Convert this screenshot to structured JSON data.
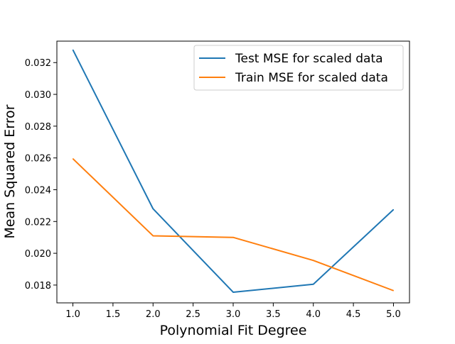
{
  "chart_data": {
    "type": "line",
    "title": "",
    "xlabel": "Polynomial Fit Degree",
    "ylabel": "Mean Squared Error",
    "x": [
      1.0,
      2.0,
      3.0,
      4.0,
      5.0
    ],
    "xlim": [
      0.8,
      5.2
    ],
    "ylim": [
      0.01688,
      0.03335
    ],
    "xticks": [
      1.0,
      1.5,
      2.0,
      2.5,
      3.0,
      3.5,
      4.0,
      4.5,
      5.0
    ],
    "xtick_labels": [
      "1.0",
      "1.5",
      "2.0",
      "2.5",
      "3.0",
      "3.5",
      "4.0",
      "4.5",
      "5.0"
    ],
    "yticks": [
      0.018,
      0.02,
      0.022,
      0.024,
      0.026,
      0.028,
      0.03,
      0.032
    ],
    "ytick_labels": [
      "0.018",
      "0.020",
      "0.022",
      "0.024",
      "0.026",
      "0.028",
      "0.030",
      "0.032"
    ],
    "grid": false,
    "legend_position": "top-right",
    "series": [
      {
        "name": "Test MSE for scaled data",
        "color": "#1f77b4",
        "values": [
          0.0328,
          0.0228,
          0.01755,
          0.01805,
          0.02275
        ]
      },
      {
        "name": "Train MSE for scaled data",
        "color": "#ff7f0e",
        "values": [
          0.02595,
          0.0211,
          0.021,
          0.01955,
          0.01765
        ]
      }
    ]
  }
}
